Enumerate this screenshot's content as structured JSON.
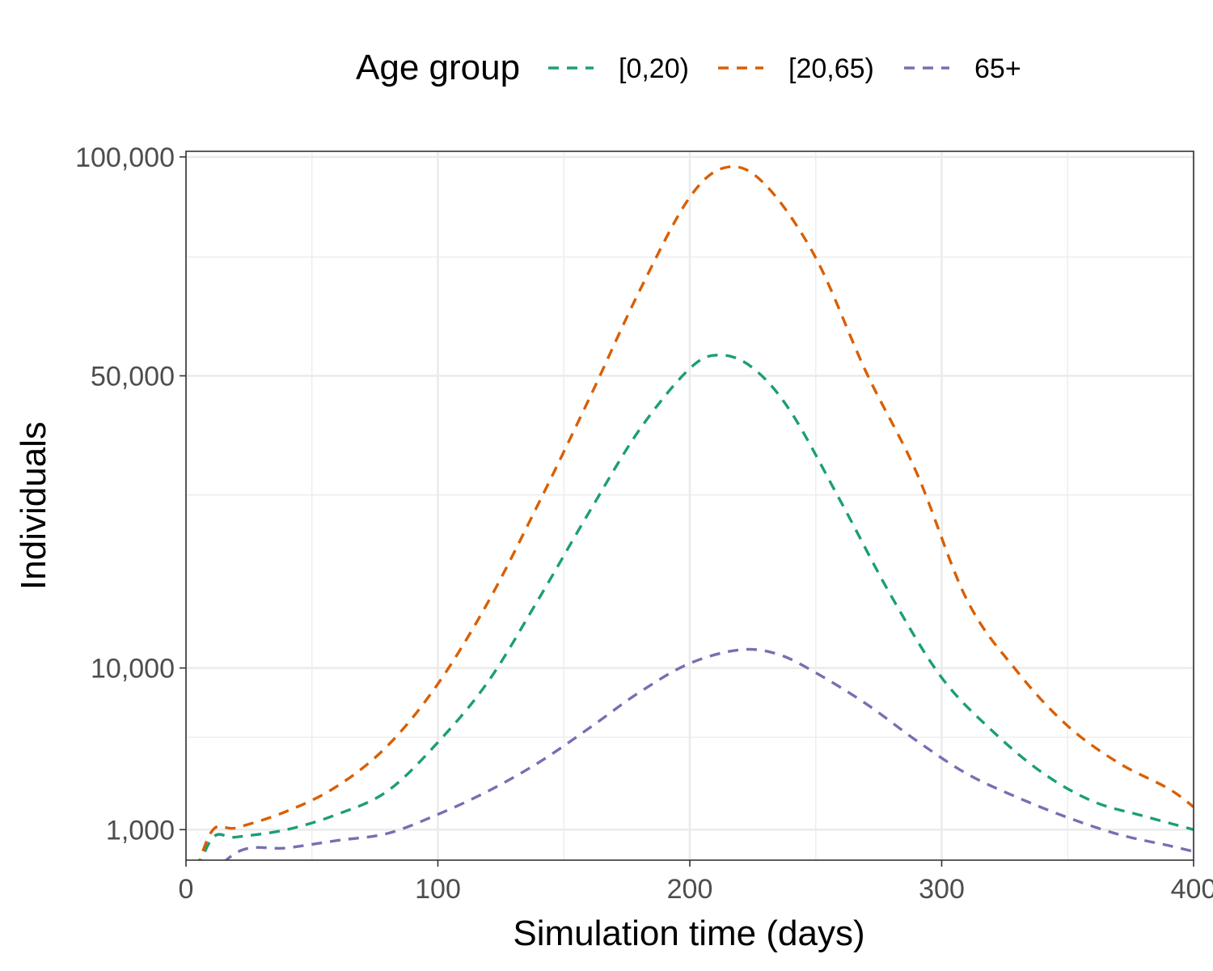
{
  "chart_data": {
    "type": "line",
    "xlabel": "Simulation time (days)",
    "ylabel": "Individuals",
    "xlim": [
      0,
      400
    ],
    "ylim": [
      350,
      101500
    ],
    "y_scale": "sqrt",
    "x_ticks": [
      0,
      100,
      200,
      300,
      400
    ],
    "x_tick_labels": [
      "0",
      "100",
      "200",
      "300",
      "400"
    ],
    "y_ticks": [
      1000,
      10000,
      50000,
      100000
    ],
    "y_tick_labels": [
      "1,000",
      "10,000",
      "50,000",
      "100,000"
    ],
    "y_minor_gridlines": [
      5000,
      30000,
      75000
    ],
    "x_minor_gridlines": [
      50,
      150,
      250,
      350
    ],
    "grid": true,
    "legend": {
      "title": "Age group",
      "position": "top"
    },
    "series": [
      {
        "name": "[0,20)",
        "color": "#1B9E77",
        "line_style": "dashed",
        "x": [
          0,
          10,
          20,
          40,
          60,
          80,
          100,
          120,
          140,
          160,
          180,
          200,
          212,
          225,
          240,
          260,
          280,
          300,
          320,
          340,
          360,
          380,
          400
        ],
        "y": [
          0,
          750,
          810,
          1000,
          1450,
          2300,
          4700,
          8900,
          16700,
          27500,
          40300,
          51400,
          54000,
          51500,
          43500,
          29000,
          17000,
          9200,
          5400,
          3100,
          1900,
          1400,
          1000
        ]
      },
      {
        "name": "[20,65)",
        "color": "#D95F02",
        "line_style": "dashed",
        "x": [
          0,
          10,
          20,
          40,
          60,
          80,
          100,
          120,
          140,
          160,
          180,
          200,
          215,
          230,
          250,
          270,
          290,
          310,
          330,
          350,
          370,
          390,
          400
        ],
        "y": [
          0,
          930,
          1050,
          1550,
          2500,
          4500,
          8700,
          16400,
          28800,
          45700,
          67300,
          89500,
          97300,
          92700,
          74800,
          50700,
          33400,
          16600,
          9700,
          5700,
          3600,
          2400,
          1700
        ]
      },
      {
        "name": "65+",
        "color": "#7570B3",
        "line_style": "dashed",
        "x": [
          0,
          20,
          40,
          60,
          80,
          100,
          120,
          140,
          160,
          180,
          200,
          220,
          235,
          250,
          270,
          290,
          310,
          330,
          350,
          370,
          390,
          400
        ],
        "y": [
          0,
          480,
          570,
          730,
          900,
          1450,
          2300,
          3600,
          5550,
          8050,
          10400,
          11600,
          11200,
          9600,
          7200,
          4800,
          3050,
          2050,
          1350,
          880,
          620,
          500
        ]
      }
    ]
  }
}
